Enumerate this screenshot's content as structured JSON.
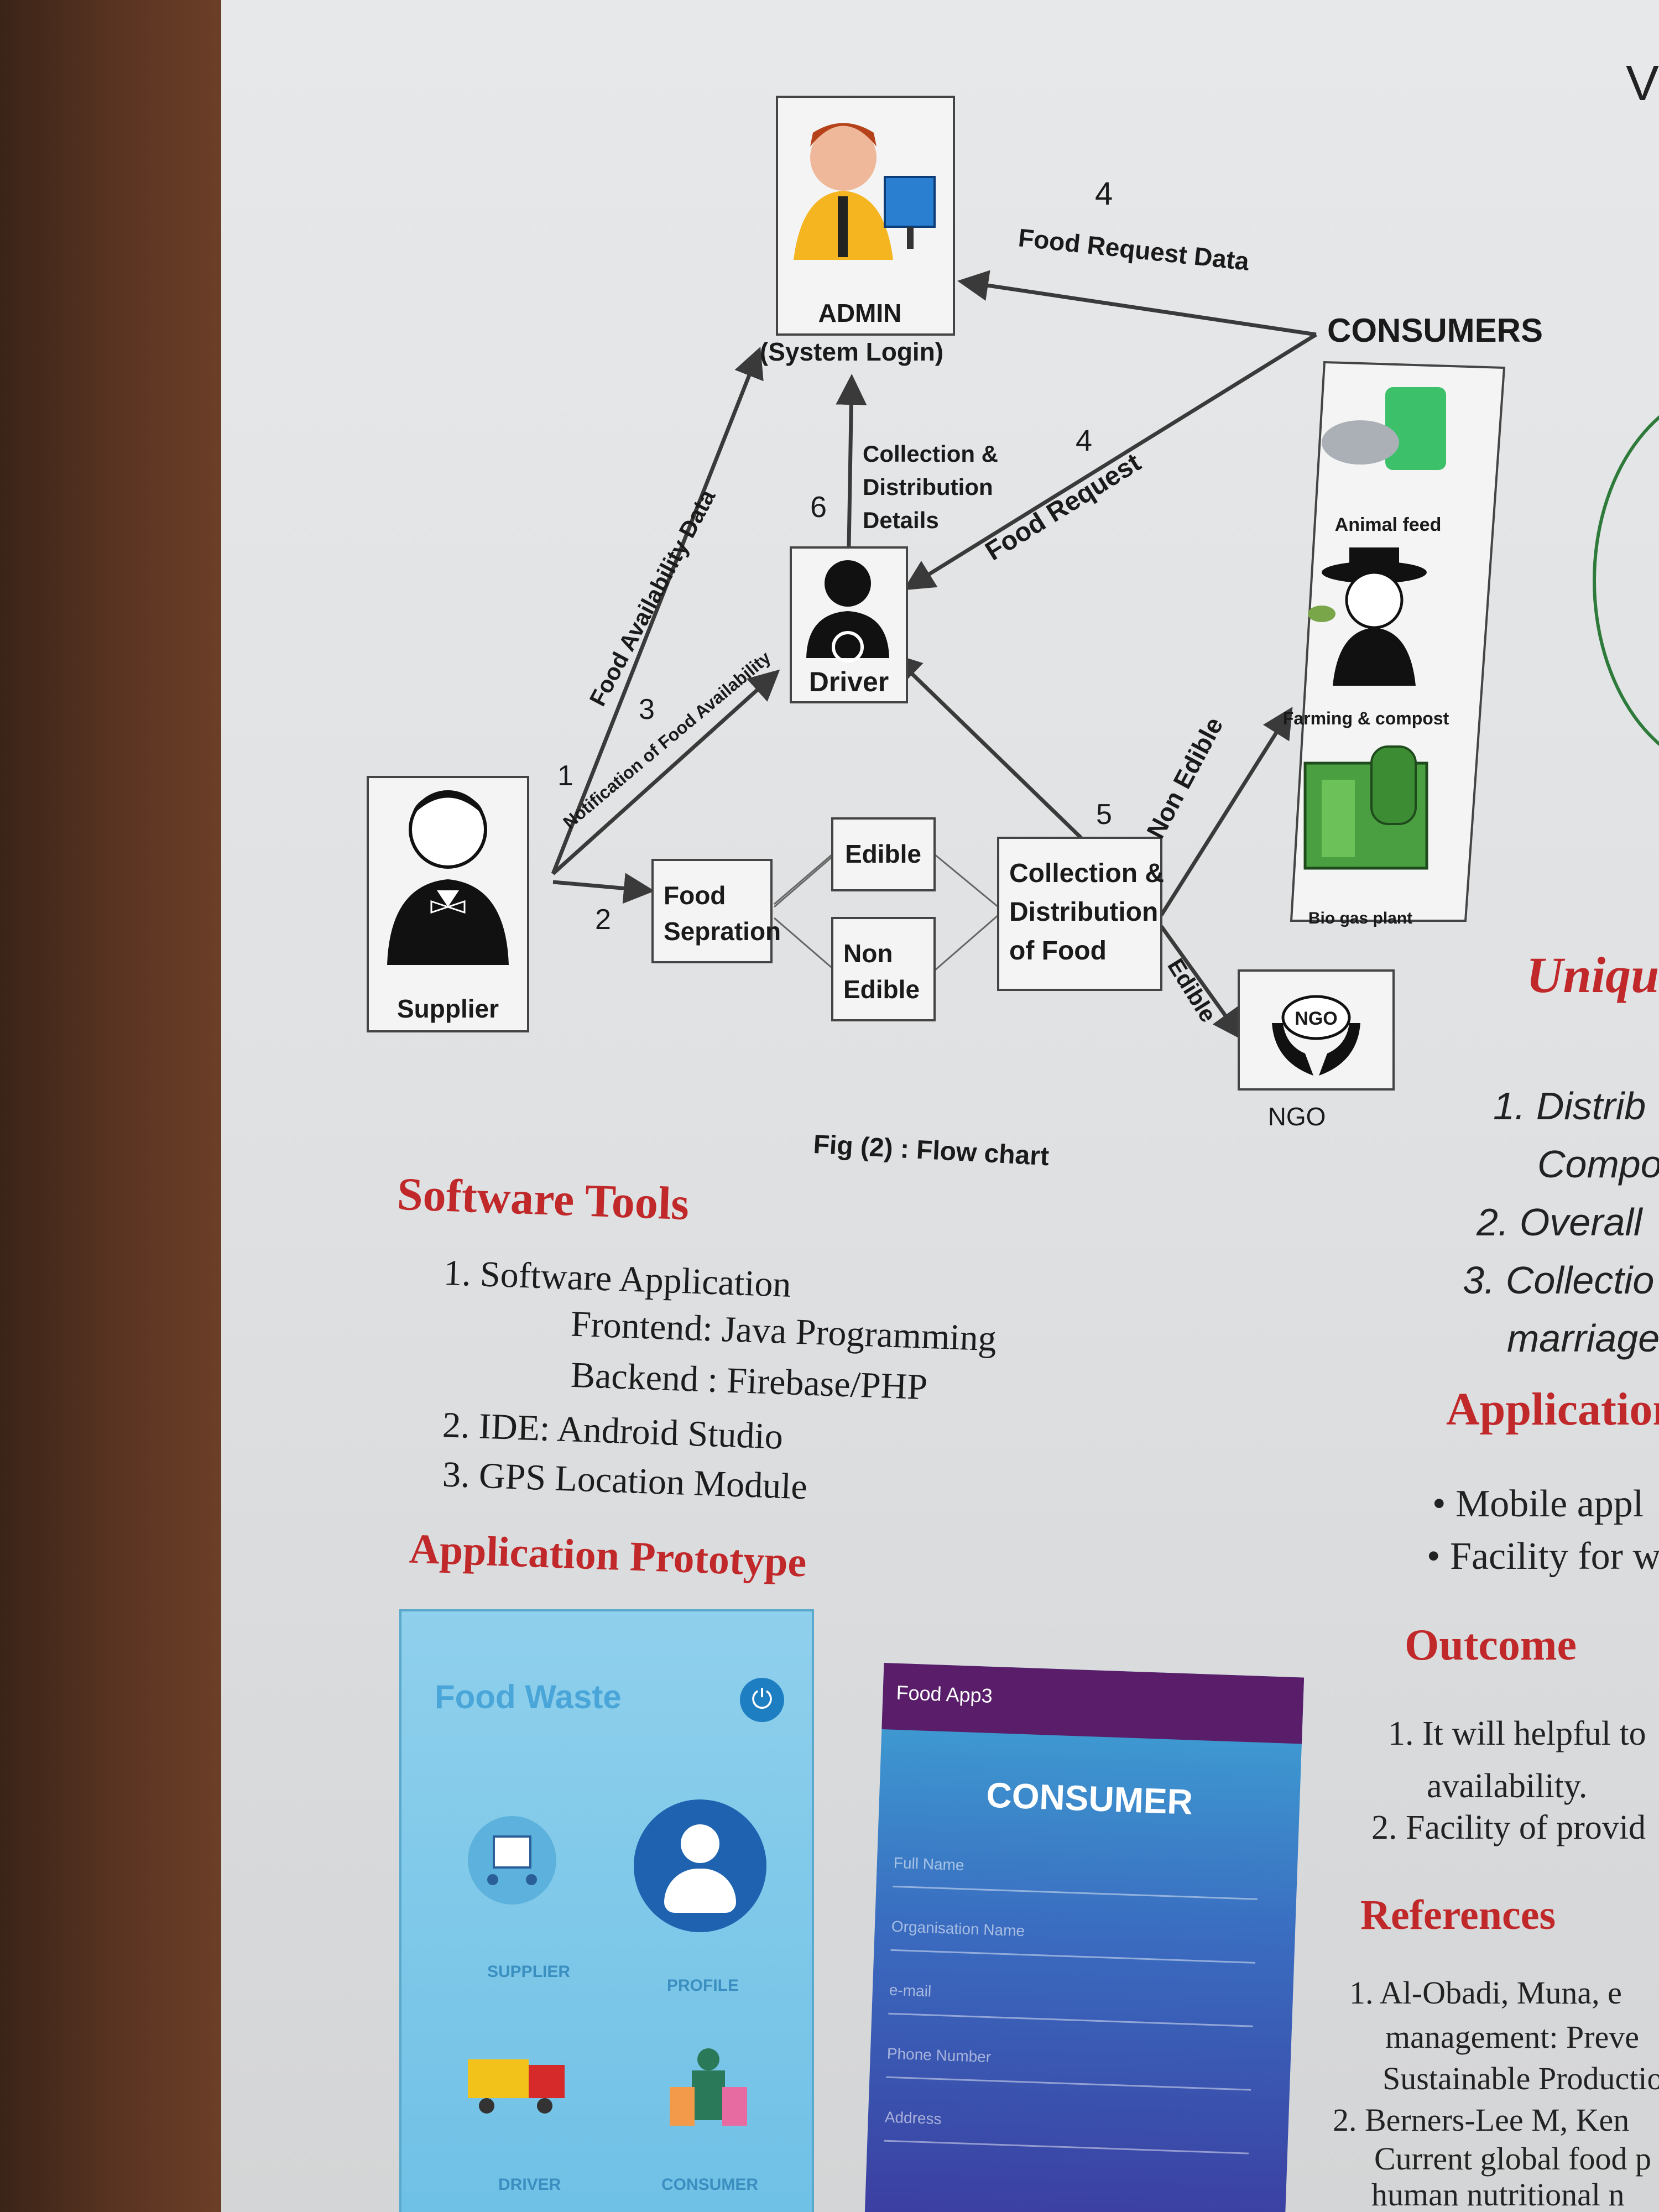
{
  "diagram": {
    "admin_label": "ADMIN",
    "admin_sub": "(System Login)",
    "consumers_label": "CONSUMERS",
    "driver_label": "Driver",
    "supplier_label": "Supplier",
    "food_separation": [
      "Food",
      "Sepration"
    ],
    "edible": "Edible",
    "non_edible": [
      "Non",
      "Edible"
    ],
    "collection": [
      "Collection &",
      "Distribution",
      "of Food"
    ],
    "ngo_label": "NGO",
    "ngo_badge": "NGO",
    "animal_feed": "Animal feed",
    "farming": "Farming & compost",
    "bio_gas": "Bio gas plant",
    "edge_food_request_data": "Food Request Data",
    "edge_food_request": "Food Request",
    "edge_collection_details": [
      "Collection &",
      "Distribution",
      "Details"
    ],
    "edge_food_availability": "Food Availability Data",
    "edge_notification": "Notification of Food Availability",
    "edge_non_edible": "Non Edible",
    "edge_edible": "Edible",
    "num_4a": "4",
    "num_4b": "4",
    "num_6": "6",
    "num_3": "3",
    "num_1": "1",
    "num_2": "2",
    "num_5": "5",
    "fig_caption": "Fig (2) : Flow chart"
  },
  "software_tools": {
    "heading": "Software Tools",
    "lines": [
      "1. Software Application",
      "Frontend: Java  Programming",
      "Backend : Firebase/PHP",
      "2. IDE: Android Studio",
      "3. GPS Location Module"
    ]
  },
  "prototype": {
    "heading": "Application Prototype",
    "phone1_title": "Food Waste",
    "phone1_power": "⏻",
    "tiles": [
      "SUPPLIER",
      "PROFILE",
      "DRIVER",
      "CONSUMER"
    ],
    "phone2_appbar": "Food App3",
    "phone2_title": "CONSUMER",
    "fields": [
      "Full Name",
      "Organisation Name",
      "e-mail",
      "Phone Number",
      "Address"
    ]
  },
  "right_column": {
    "top_letter": "V",
    "unique_heading": "Uniqu",
    "unique_items": [
      "1.  Distrib",
      "Compo",
      "2.  Overall",
      "3.  Collectio",
      "marriages"
    ],
    "application_heading": "Application",
    "application_items": [
      "•  Mobile appl",
      "•  Facility for w"
    ],
    "outcome_heading": "Outcome",
    "outcome_items": [
      "1.  It will helpful to",
      "availability.",
      "2.  Facility of provid"
    ],
    "references_heading": "References",
    "references": [
      "1.  Al-Obadi, Muna, e",
      "management:  Preve",
      "Sustainable Productio",
      "2.  Berners-Lee M, Ken",
      "Current  global  food  p",
      "human  nutritional  n"
    ]
  },
  "colors": {
    "heading_red": "#c0282a",
    "poster_bg": "#e2e4e6",
    "phone1_bg": "#7ec8ea",
    "phone2_appbar": "#5a1d6a"
  }
}
